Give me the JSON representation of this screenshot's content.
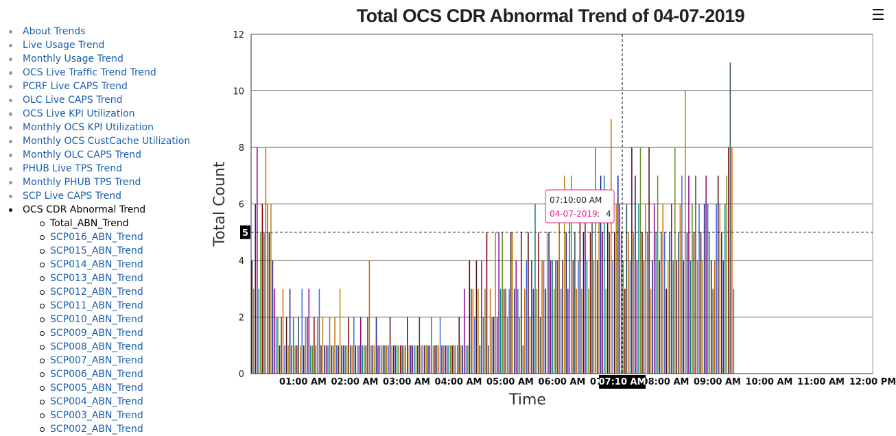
{
  "nav": {
    "items": [
      {
        "label": "About Trends"
      },
      {
        "label": "Live Usage Trend"
      },
      {
        "label": "Monthly Usage Trend"
      },
      {
        "label": "OCS Live Traffic Trend Trend"
      },
      {
        "label": "PCRF Live CAPS Trend"
      },
      {
        "label": "OLC Live CAPS Trend"
      },
      {
        "label": "OCS Live KPI Utilization"
      },
      {
        "label": "Monthly OCS KPI Utilization"
      },
      {
        "label": "Monthly OCS CustCache Utilization"
      },
      {
        "label": "Monthly OLC CAPS Trend"
      },
      {
        "label": "PHUB Live TPS Trend"
      },
      {
        "label": "Monthly PHUB TPS Trend"
      },
      {
        "label": "SCP Live CAPS Trend"
      },
      {
        "label": "OCS CDR Abnormal Trend"
      }
    ],
    "sub_items": [
      {
        "label": "Total_ABN_Trend"
      },
      {
        "label": "SCP016_ABN_Trend"
      },
      {
        "label": "SCP015_ABN_Trend"
      },
      {
        "label": "SCP014_ABN_Trend"
      },
      {
        "label": "SCP013_ABN_Trend"
      },
      {
        "label": "SCP012_ABN_Trend"
      },
      {
        "label": "SCP011_ABN_Trend"
      },
      {
        "label": "SCP010_ABN_Trend"
      },
      {
        "label": "SCP009_ABN_Trend"
      },
      {
        "label": "SCP008_ABN_Trend"
      },
      {
        "label": "SCP007_ABN_Trend"
      },
      {
        "label": "SCP006_ABN_Trend"
      },
      {
        "label": "SCP005_ABN_Trend"
      },
      {
        "label": "SCP004_ABN_Trend"
      },
      {
        "label": "SCP003_ABN_Trend"
      },
      {
        "label": "SCP002_ABN_Trend"
      }
    ]
  },
  "menu_icon": "hamburger-menu-icon",
  "chart_data": {
    "type": "bar",
    "title": "Total OCS CDR Abnormal Trend of 04-07-2019",
    "xlabel": "Time",
    "ylabel": "Total Count",
    "ylim": [
      0,
      12
    ],
    "yticks": [
      "0",
      "2",
      "4",
      "6",
      "8",
      "10",
      "12"
    ],
    "xticks": [
      "01:00 AM",
      "02:00 AM",
      "03:00 AM",
      "04:00 AM",
      "05:00 AM",
      "06:00 AM",
      "07:00 AM",
      "08:00 AM",
      "09:00 AM",
      "10:00 AM",
      "11:00 AM",
      "12:00 PM"
    ],
    "x_range_minutes": [
      0,
      720
    ],
    "grid": true,
    "palette": [
      "#4b0f0f",
      "#b8860b",
      "#1e1e8c",
      "#8b008b",
      "#008b8b",
      "#6b8e23",
      "#800000",
      "#2f4f4f",
      "#cc6600",
      "#4169e1"
    ],
    "crosshair": {
      "y_label": "5",
      "x_label": "07:10 AM",
      "x_minutes": 430,
      "y_value": 5
    },
    "tooltip": {
      "time": "07:10:00 AM",
      "series": "04-07-2019",
      "value": "4",
      "series_color": "#e91e8c"
    },
    "series": [
      {
        "name": "04-07-2019",
        "interval_minutes": 2,
        "values": [
          4,
          3,
          6,
          8,
          3,
          5,
          6,
          5,
          8,
          6,
          5,
          6,
          4,
          3,
          2,
          2,
          1,
          2,
          3,
          1,
          2,
          1,
          3,
          1,
          2,
          1,
          1,
          2,
          1,
          3,
          1,
          2,
          2,
          3,
          1,
          1,
          2,
          1,
          2,
          3,
          1,
          2,
          1,
          1,
          1,
          2,
          1,
          1,
          2,
          1,
          1,
          3,
          1,
          1,
          1,
          1,
          2,
          1,
          1,
          2,
          1,
          1,
          1,
          2,
          1,
          1,
          1,
          2,
          4,
          1,
          1,
          1,
          2,
          1,
          1,
          1,
          1,
          1,
          1,
          1,
          2,
          1,
          1,
          1,
          1,
          1,
          1,
          1,
          1,
          1,
          2,
          1,
          1,
          1,
          1,
          1,
          1,
          2,
          1,
          1,
          1,
          1,
          1,
          1,
          2,
          1,
          1,
          1,
          1,
          2,
          1,
          1,
          1,
          1,
          1,
          1,
          1,
          1,
          1,
          1,
          2,
          1,
          1,
          3,
          1,
          1,
          4,
          3,
          3,
          2,
          4,
          3,
          1,
          4,
          2,
          3,
          5,
          1,
          3,
          2,
          2,
          5,
          2,
          5,
          3,
          5,
          3,
          3,
          2,
          3,
          5,
          5,
          3,
          4,
          3,
          2,
          5,
          1,
          3,
          4,
          5,
          2,
          4,
          3,
          6,
          3,
          5,
          2,
          4,
          4,
          3,
          5,
          5,
          4,
          4,
          3,
          4,
          4,
          6,
          3,
          4,
          7,
          5,
          3,
          6,
          7,
          4,
          5,
          3,
          4,
          6,
          3,
          5,
          6,
          4,
          3,
          5,
          6,
          4,
          8,
          4,
          6,
          7,
          5,
          7,
          3,
          6,
          5,
          9,
          4,
          5,
          6,
          7,
          6,
          5,
          4,
          3,
          6,
          5,
          4,
          8,
          5,
          7,
          4,
          6,
          8,
          5,
          4,
          6,
          5,
          8,
          3,
          4,
          6,
          5,
          7,
          4,
          5,
          6,
          5,
          3,
          4,
          5,
          6,
          4,
          8,
          4,
          5,
          6,
          7,
          4,
          10,
          5,
          7,
          4,
          6,
          5,
          7,
          4,
          6,
          5,
          4,
          6,
          7,
          6,
          5,
          4,
          3,
          4,
          6,
          7,
          6,
          5,
          4,
          6,
          7,
          8,
          11,
          8,
          3
        ]
      }
    ]
  }
}
